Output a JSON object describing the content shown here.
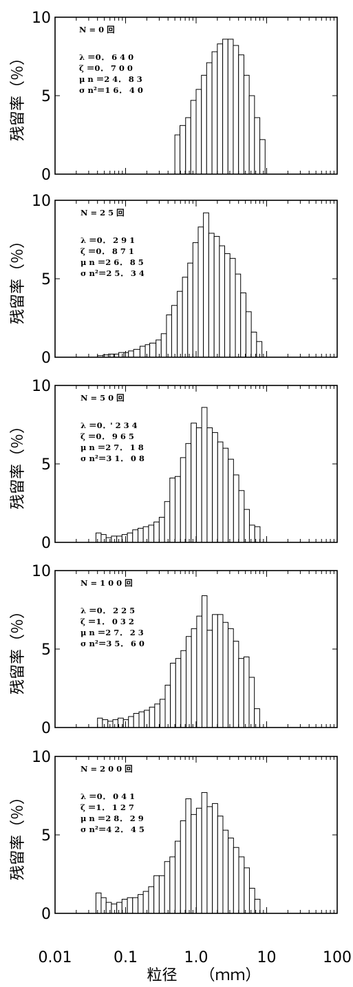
{
  "figure": {
    "xlabel": "粒径　　（ｍｍ）",
    "x_tick_labels": [
      "0.01",
      "0.1",
      "1.0",
      "10",
      "100"
    ],
    "bar_fill": "#ffffff",
    "stroke": "#000000"
  },
  "chart_data": [
    {
      "type": "bar",
      "ylabel": "残留率（％）",
      "yticks": [
        "0",
        "5",
        "10"
      ],
      "ylim": [
        0,
        10
      ],
      "xscale": "log",
      "xlim": [
        0.01,
        100
      ],
      "annotation": [
        "N = 0 回",
        "λ ＝0． 6 4 0",
        "ζ ＝0． 7 0 0",
        "μ n ＝2 4． 8 3",
        "σ n²＝1 6． 4 0"
      ],
      "bin_edges": [
        0.5,
        0.59,
        0.71,
        0.84,
        1.0,
        1.19,
        1.41,
        1.68,
        2.0,
        2.38,
        2.83,
        3.36,
        4.0,
        4.76,
        5.66,
        6.73,
        8.0
      ],
      "values": [
        2.5,
        3.1,
        3.6,
        4.7,
        5.4,
        6.3,
        7.1,
        7.8,
        8.3,
        8.6,
        8.6,
        8.2,
        7.6,
        6.3,
        5.0,
        3.6,
        2.2
      ]
    },
    {
      "type": "bar",
      "ylabel": "残留率（％）",
      "yticks": [
        "0",
        "5",
        "10"
      ],
      "ylim": [
        0,
        10
      ],
      "xscale": "log",
      "xlim": [
        0.01,
        100
      ],
      "annotation": [
        "N = 2 5 回",
        "λ ＝0． 2 9 1",
        "ζ ＝0． 8 7 1",
        "μ n ＝2 6． 8 5",
        "σ n²＝2 5． 3 4"
      ],
      "bin_edges": [
        0.04,
        0.048,
        0.057,
        0.068,
        0.08,
        0.095,
        0.11,
        0.13,
        0.16,
        0.19,
        0.22,
        0.27,
        0.32,
        0.38,
        0.45,
        0.54,
        0.64,
        0.76,
        0.9,
        1.07,
        1.27,
        1.51,
        1.8,
        2.14,
        2.54,
        3.02,
        3.6,
        4.28,
        5.09,
        6.05,
        7.2
      ],
      "values": [
        0.1,
        0.15,
        0.2,
        0.2,
        0.3,
        0.3,
        0.4,
        0.5,
        0.7,
        0.8,
        0.9,
        1.1,
        1.5,
        2.7,
        3.3,
        4.2,
        5.1,
        6.0,
        7.3,
        8.3,
        9.2,
        7.9,
        7.7,
        7.1,
        6.6,
        6.3,
        5.3,
        4.1,
        2.9,
        1.6,
        1.0
      ]
    },
    {
      "type": "bar",
      "ylabel": "残留率（％）",
      "yticks": [
        "0",
        "5",
        "10"
      ],
      "ylim": [
        0,
        10
      ],
      "xscale": "log",
      "xlim": [
        0.01,
        100
      ],
      "annotation": [
        "N = 5 0 回",
        "λ ＝0．' 2 3 4",
        "ζ ＝0． 9 6 5",
        "μ n ＝2 7． 1 8",
        "σ n²＝3 1． 0 8"
      ],
      "bin_edges": [
        0.038,
        0.045,
        0.053,
        0.063,
        0.075,
        0.089,
        0.106,
        0.126,
        0.15,
        0.178,
        0.212,
        0.252,
        0.3,
        0.357,
        0.424,
        0.504,
        0.6,
        0.713,
        0.848,
        1.01,
        1.2,
        1.43,
        1.7,
        2.02,
        2.4,
        2.85,
        3.39,
        4.03,
        4.8,
        5.7,
        6.78
      ],
      "values": [
        0.6,
        0.5,
        0.3,
        0.4,
        0.4,
        0.5,
        0.6,
        0.8,
        0.9,
        1.0,
        1.1,
        1.3,
        1.6,
        2.6,
        4.1,
        4.2,
        5.4,
        6.3,
        7.6,
        7.3,
        8.6,
        7.3,
        7.0,
        6.4,
        6.0,
        5.3,
        4.3,
        3.3,
        2.1,
        1.1,
        1.0
      ]
    },
    {
      "type": "bar",
      "ylabel": "残留率（％）",
      "yticks": [
        "0",
        "5",
        "10"
      ],
      "ylim": [
        0,
        10
      ],
      "xscale": "log",
      "xlim": [
        0.01,
        100
      ],
      "annotation": [
        "N = 1 0 0 回",
        "λ ＝0． 2 2 5",
        "ζ ＝1． 0 3 2",
        "μ n ＝2 7． 2 3",
        "σ n²＝3 5． 6 0"
      ],
      "bin_edges": [
        0.04,
        0.047,
        0.056,
        0.066,
        0.078,
        0.093,
        0.11,
        0.13,
        0.155,
        0.184,
        0.218,
        0.259,
        0.307,
        0.364,
        0.432,
        0.513,
        0.608,
        0.722,
        0.857,
        1.02,
        1.21,
        1.43,
        1.7,
        2.02,
        2.4,
        2.84,
        3.38,
        4.01,
        4.75,
        5.64,
        6.7
      ],
      "values": [
        0.6,
        0.5,
        0.4,
        0.5,
        0.6,
        0.5,
        0.7,
        0.9,
        1.0,
        1.1,
        1.3,
        1.5,
        1.8,
        2.7,
        4.1,
        4.4,
        4.9,
        5.8,
        6.3,
        7.1,
        8.4,
        6.2,
        7.2,
        7.2,
        6.7,
        6.3,
        5.5,
        4.4,
        4.5,
        3.2,
        1.2
      ]
    },
    {
      "type": "bar",
      "ylabel": "残留率（％）",
      "yticks": [
        "0",
        "5",
        "10"
      ],
      "ylim": [
        0,
        10
      ],
      "xscale": "log",
      "xlim": [
        0.01,
        100
      ],
      "annotation": [
        "N = 2 0 0 回",
        "λ ＝0． 0 4 1",
        "ζ ＝1． 1 2 7",
        "μ n ＝2 8． 2 9",
        "σ n²＝4 2． 4 5"
      ],
      "bin_edges": [
        0.038,
        0.045,
        0.053,
        0.063,
        0.075,
        0.089,
        0.106,
        0.126,
        0.15,
        0.178,
        0.212,
        0.252,
        0.3,
        0.357,
        0.424,
        0.504,
        0.6,
        0.713,
        0.848,
        1.01,
        1.2,
        1.43,
        1.7,
        2.02,
        2.4,
        2.85,
        3.39,
        4.03,
        4.8,
        5.7,
        6.78
      ],
      "values": [
        1.3,
        1.0,
        0.7,
        0.6,
        0.7,
        0.9,
        1.0,
        1.0,
        1.2,
        1.4,
        1.7,
        2.4,
        2.4,
        3.3,
        3.6,
        4.6,
        5.9,
        7.3,
        6.3,
        6.7,
        7.7,
        6.8,
        7.0,
        6.2,
        5.3,
        4.8,
        4.2,
        3.6,
        2.9,
        1.6,
        0.9
      ]
    }
  ]
}
